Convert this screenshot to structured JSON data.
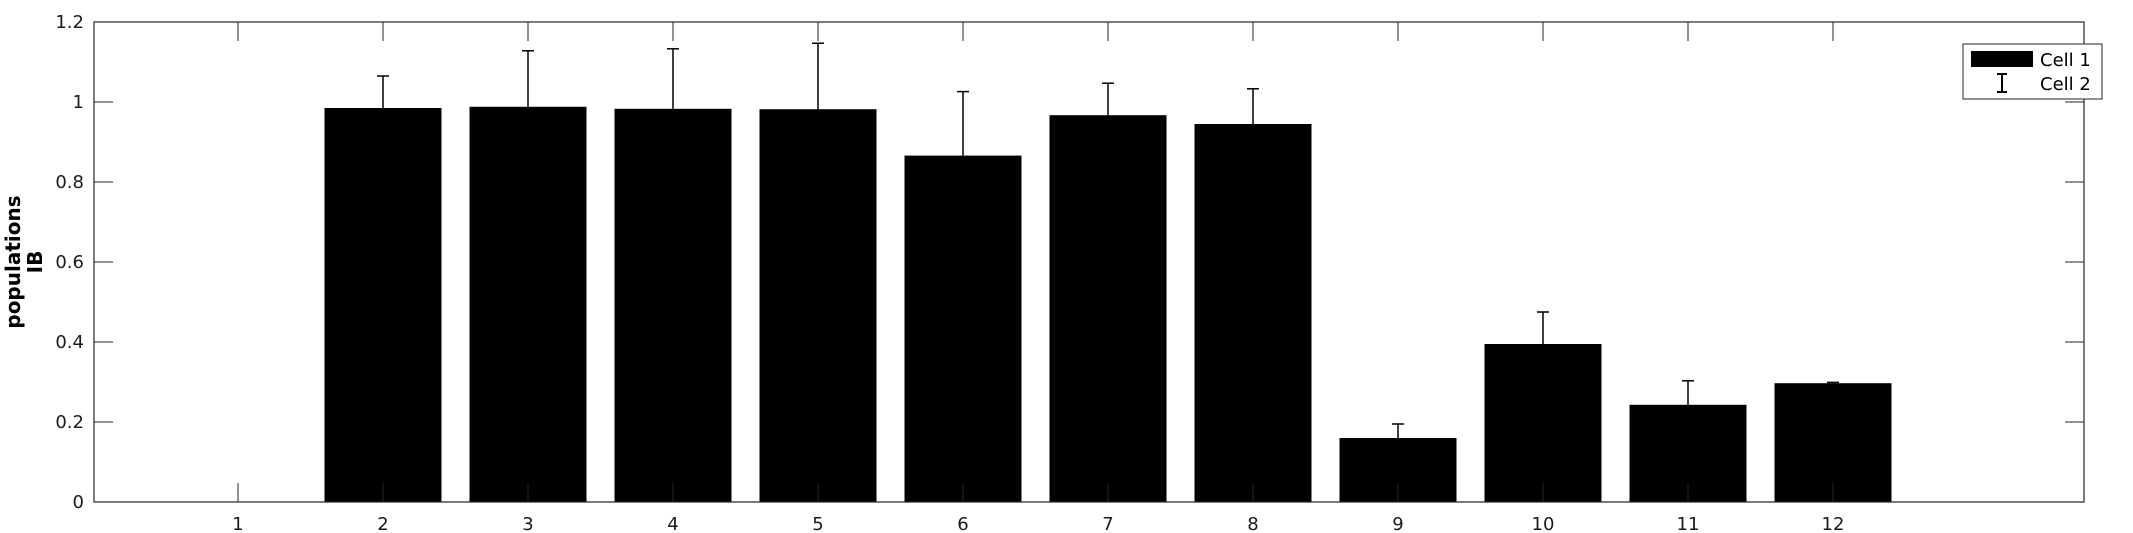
{
  "chart_data": {
    "type": "bar",
    "categories": [
      "1",
      "2",
      "3",
      "4",
      "5",
      "6",
      "7",
      "8",
      "9",
      "10",
      "11",
      "12"
    ],
    "series": [
      {
        "name": "Cell 1",
        "values": [
          0,
          0.985,
          0.988,
          0.983,
          0.982,
          0.866,
          0.967,
          0.945,
          0.16,
          0.395,
          0.243,
          0.297
        ]
      }
    ],
    "errors": {
      "name": "Cell 2",
      "values": [
        0,
        0.08,
        0.14,
        0.15,
        0.165,
        0.16,
        0.08,
        0.088,
        0.035,
        0.08,
        0.06,
        0.002
      ]
    },
    "ylabel_lines": [
      "populations",
      "IB"
    ],
    "xlabel": "",
    "ylim": [
      0,
      1.2
    ],
    "yticks": [
      "0",
      "0.2",
      "0.4",
      "0.6",
      "0.8",
      "1",
      "1.2"
    ],
    "legend_position": "top-right",
    "colors": {
      "bar": "#000000",
      "error": "#000000"
    }
  }
}
